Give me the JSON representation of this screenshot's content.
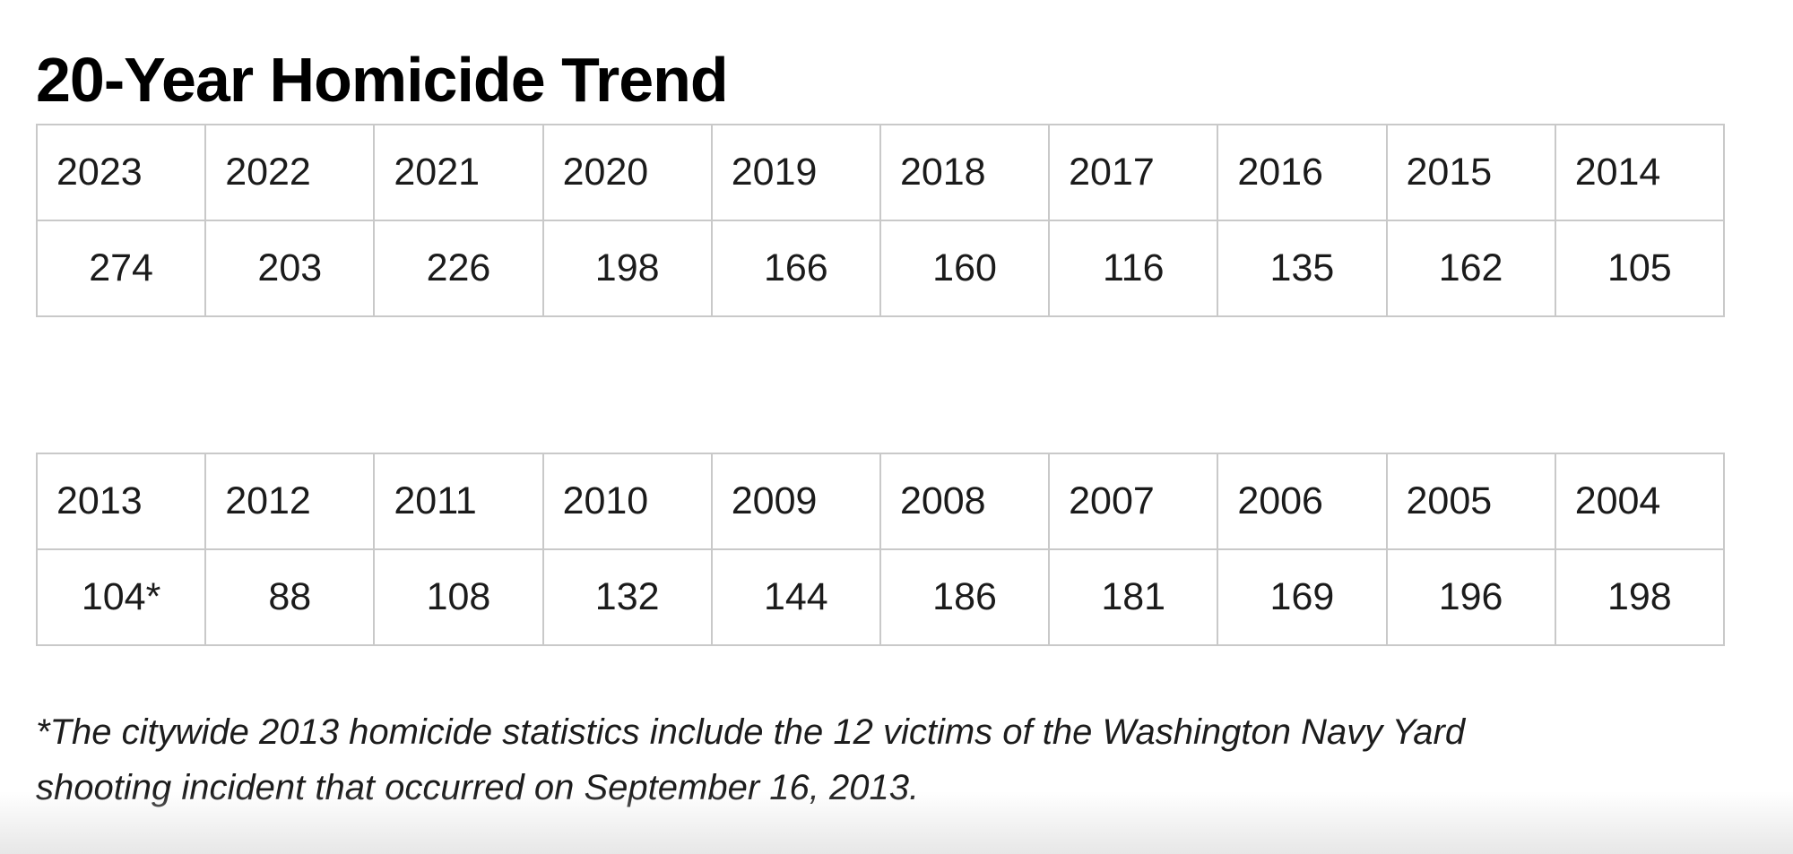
{
  "page": {
    "title": "20-Year Homicide Trend"
  },
  "tables": [
    {
      "years": [
        "2023",
        "2022",
        "2021",
        "2020",
        "2019",
        "2018",
        "2017",
        "2016",
        "2015",
        "2014"
      ],
      "values": [
        "274",
        "203",
        "226",
        "198",
        "166",
        "160",
        "116",
        "135",
        "162",
        "105"
      ]
    },
    {
      "years": [
        "2013",
        "2012",
        "2011",
        "2010",
        "2009",
        "2008",
        "2007",
        "2006",
        "2005",
        "2004"
      ],
      "values": [
        "104*",
        "88",
        "108",
        "132",
        "144",
        "186",
        "181",
        "169",
        "196",
        "198"
      ]
    }
  ],
  "footnote": {
    "line1": "*The citywide 2013 homicide statistics include the 12 victims of the Washington Navy Yard",
    "line2": "shooting incident that occurred on September 16, 2013."
  },
  "chart_data": {
    "type": "table",
    "title": "20-Year Homicide Trend",
    "categories": [
      "2023",
      "2022",
      "2021",
      "2020",
      "2019",
      "2018",
      "2017",
      "2016",
      "2015",
      "2014",
      "2013",
      "2012",
      "2011",
      "2010",
      "2009",
      "2008",
      "2007",
      "2006",
      "2005",
      "2004"
    ],
    "values": [
      274,
      203,
      226,
      198,
      166,
      160,
      116,
      135,
      162,
      105,
      104,
      88,
      108,
      132,
      144,
      186,
      181,
      169,
      196,
      198
    ],
    "annotations": [
      "2013 value is displayed as 104* — includes the 12 victims of the Washington Navy Yard shooting incident of September 16, 2013"
    ]
  },
  "colors": {
    "table_border": "#c9c9c9",
    "text": "#1b1b1b",
    "title_text": "#000000",
    "page_fade": "#e7e7e7"
  }
}
